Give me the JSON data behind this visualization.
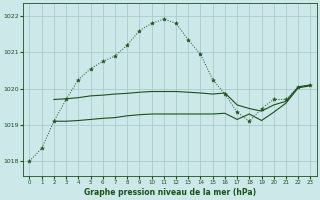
{
  "title": "Graphe pression niveau de la mer (hPa)",
  "background_color": "#cce8e8",
  "grid_color": "#aacccc",
  "line_color": "#1a5218",
  "ylim": [
    1017.6,
    1022.35
  ],
  "xlim": [
    -0.5,
    23.5
  ],
  "yticks": [
    1018,
    1019,
    1020,
    1021,
    1022
  ],
  "xticks": [
    0,
    1,
    2,
    3,
    4,
    5,
    6,
    7,
    8,
    9,
    10,
    11,
    12,
    13,
    14,
    15,
    16,
    17,
    18,
    19,
    20,
    21,
    22,
    23
  ],
  "s1_x": [
    0,
    1,
    2,
    3,
    4,
    5,
    6,
    7,
    8,
    9,
    10,
    11,
    12,
    13,
    14,
    15,
    16,
    17,
    18,
    19,
    20,
    21,
    22,
    23
  ],
  "s1_y": [
    1018.0,
    1018.35,
    1019.1,
    1019.7,
    1020.25,
    1020.55,
    1020.75,
    1020.9,
    1021.2,
    1021.6,
    1021.8,
    1021.92,
    1021.8,
    1021.35,
    1020.95,
    1020.25,
    1019.85,
    1019.35,
    1019.1,
    1019.45,
    1019.7,
    1019.7,
    1020.05,
    1020.1
  ],
  "s2_x": [
    2,
    3,
    4,
    5,
    6,
    7,
    8,
    9,
    10,
    11,
    12,
    13,
    14,
    15,
    16,
    17,
    18,
    19,
    20,
    21,
    22,
    23
  ],
  "s2_y": [
    1019.7,
    1019.72,
    1019.75,
    1019.8,
    1019.82,
    1019.85,
    1019.87,
    1019.9,
    1019.92,
    1019.92,
    1019.92,
    1019.9,
    1019.88,
    1019.85,
    1019.88,
    1019.55,
    1019.45,
    1019.38,
    1019.55,
    1019.65,
    1020.05,
    1020.1
  ],
  "s3_x": [
    2,
    3,
    4,
    5,
    6,
    7,
    8,
    9,
    10,
    11,
    12,
    13,
    14,
    15,
    16,
    17,
    18,
    19,
    20,
    21,
    22,
    23
  ],
  "s3_y": [
    1019.1,
    1019.1,
    1019.12,
    1019.15,
    1019.18,
    1019.2,
    1019.25,
    1019.28,
    1019.3,
    1019.3,
    1019.3,
    1019.3,
    1019.3,
    1019.3,
    1019.32,
    1019.15,
    1019.3,
    1019.12,
    1019.35,
    1019.6,
    1020.02,
    1020.08
  ]
}
